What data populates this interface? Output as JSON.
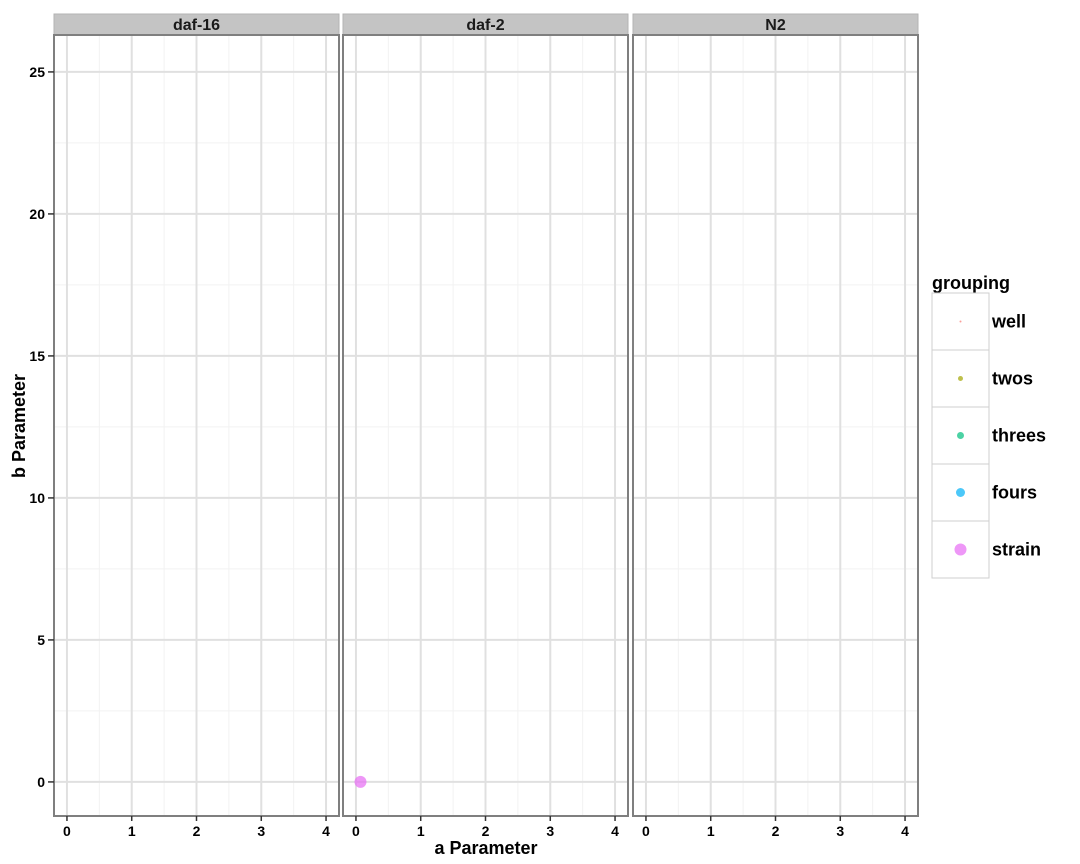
{
  "chart_data": {
    "type": "scatter",
    "facets": [
      "daf-16",
      "daf-2",
      "N2"
    ],
    "xlabel": "a Parameter",
    "ylabel": "b Parameter",
    "xlim": [
      -0.2,
      4.2
    ],
    "ylim": [
      -1.2,
      26.3
    ],
    "x_ticks": [
      0,
      1,
      2,
      3,
      4
    ],
    "y_ticks": [
      0,
      5,
      10,
      15,
      20,
      25
    ],
    "grid": true,
    "legend": {
      "title": "grouping",
      "position": "right",
      "entries": [
        {
          "label": "well",
          "color": "#F8766D"
        },
        {
          "label": "twos",
          "color": "#A3A500"
        },
        {
          "label": "threes",
          "color": "#00BF7D"
        },
        {
          "label": "fours",
          "color": "#00B0F6"
        },
        {
          "label": "strain",
          "color": "#E76BF3"
        }
      ]
    },
    "points": [
      {
        "facet": "daf-2",
        "group": "strain",
        "x": 0.07,
        "y": 0.0
      }
    ]
  }
}
